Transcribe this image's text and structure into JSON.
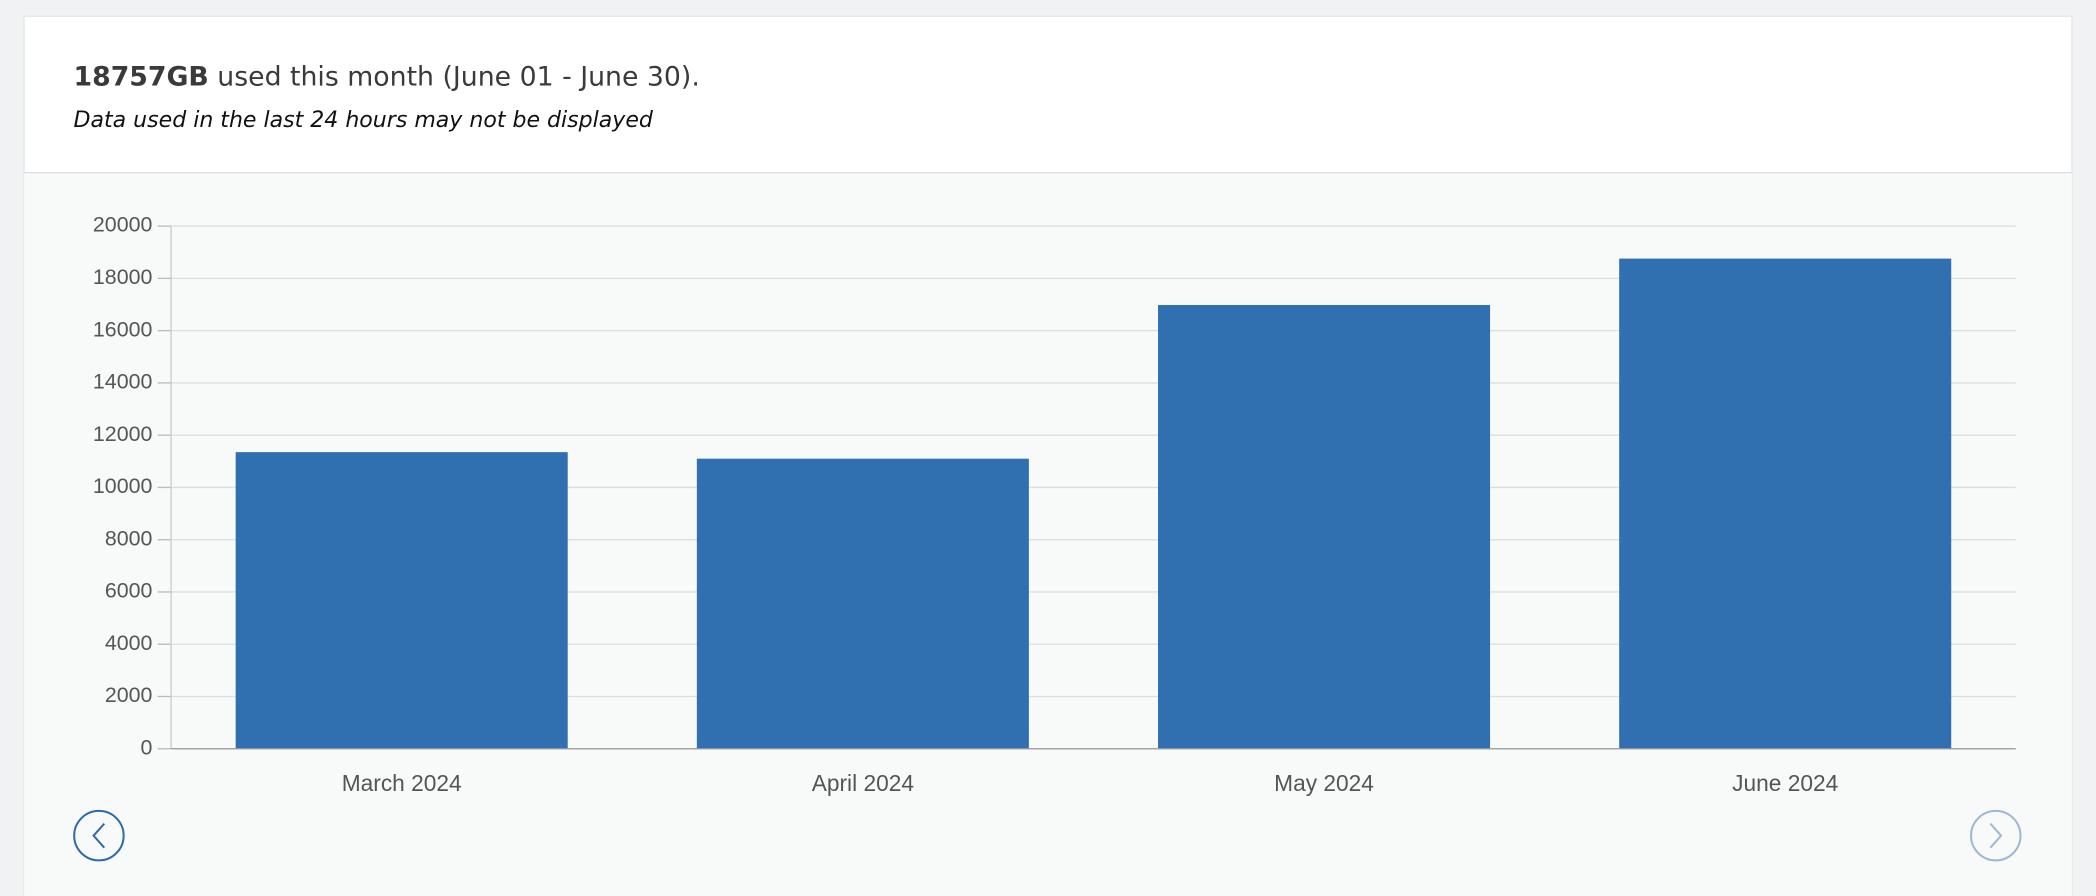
{
  "header": {
    "usage": "18757GB",
    "period": "used this month (June 01 - June 30).",
    "note": "Data used in the last 24 hours may not be displayed"
  },
  "chart_data": {
    "type": "bar",
    "categories": [
      "March 2024",
      "April 2024",
      "May 2024",
      "June 2024"
    ],
    "values": [
      11350,
      11100,
      16980,
      18757
    ],
    "color": "#3070b0",
    "ylim": [
      0,
      20000
    ],
    "yticks": [
      0,
      2000,
      4000,
      6000,
      8000,
      10000,
      12000,
      14000,
      16000,
      18000,
      20000
    ],
    "grid": true
  }
}
